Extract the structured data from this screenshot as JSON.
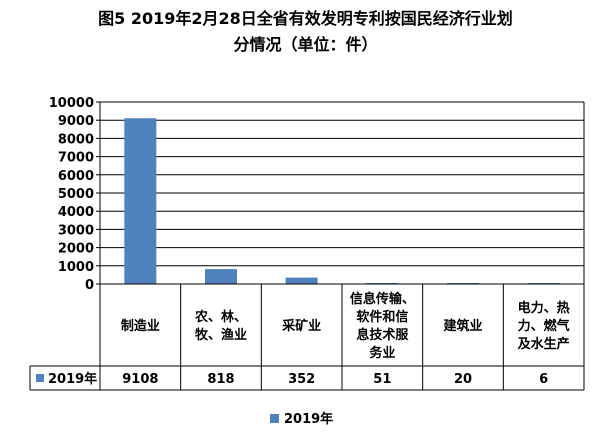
{
  "chart_data": {
    "type": "bar",
    "title": "图5  2019年2月28日全省有效发明专利按国民经济行业划分情况（单位：件）",
    "title_lines": [
      "图5  2019年2月28日全省有效发明专利按国民经济行业划",
      "分情况（单位：件）"
    ],
    "categories": [
      [
        "制造业"
      ],
      [
        "农、林、",
        "牧、渔业"
      ],
      [
        "采矿业"
      ],
      [
        "信息传输、",
        "软件和信",
        "息技术服",
        "务业"
      ],
      [
        "建筑业"
      ],
      [
        "电力、热",
        "力、燃气",
        "及水生产"
      ]
    ],
    "series": [
      {
        "name": "2019年",
        "values": [
          9108,
          818,
          352,
          51,
          20,
          6
        ]
      }
    ],
    "value_labels": [
      "9108",
      "818",
      "352",
      "51",
      "20",
      "6"
    ],
    "ylim": [
      0,
      10000
    ],
    "yticks": [
      "0",
      "1000",
      "2000",
      "3000",
      "4000",
      "5000",
      "6000",
      "7000",
      "8000",
      "9000",
      "10000"
    ],
    "grid": true,
    "data_table": true,
    "legend_position": "bottom",
    "colors": {
      "series": "#4f81bd",
      "grid": "#000000"
    }
  }
}
